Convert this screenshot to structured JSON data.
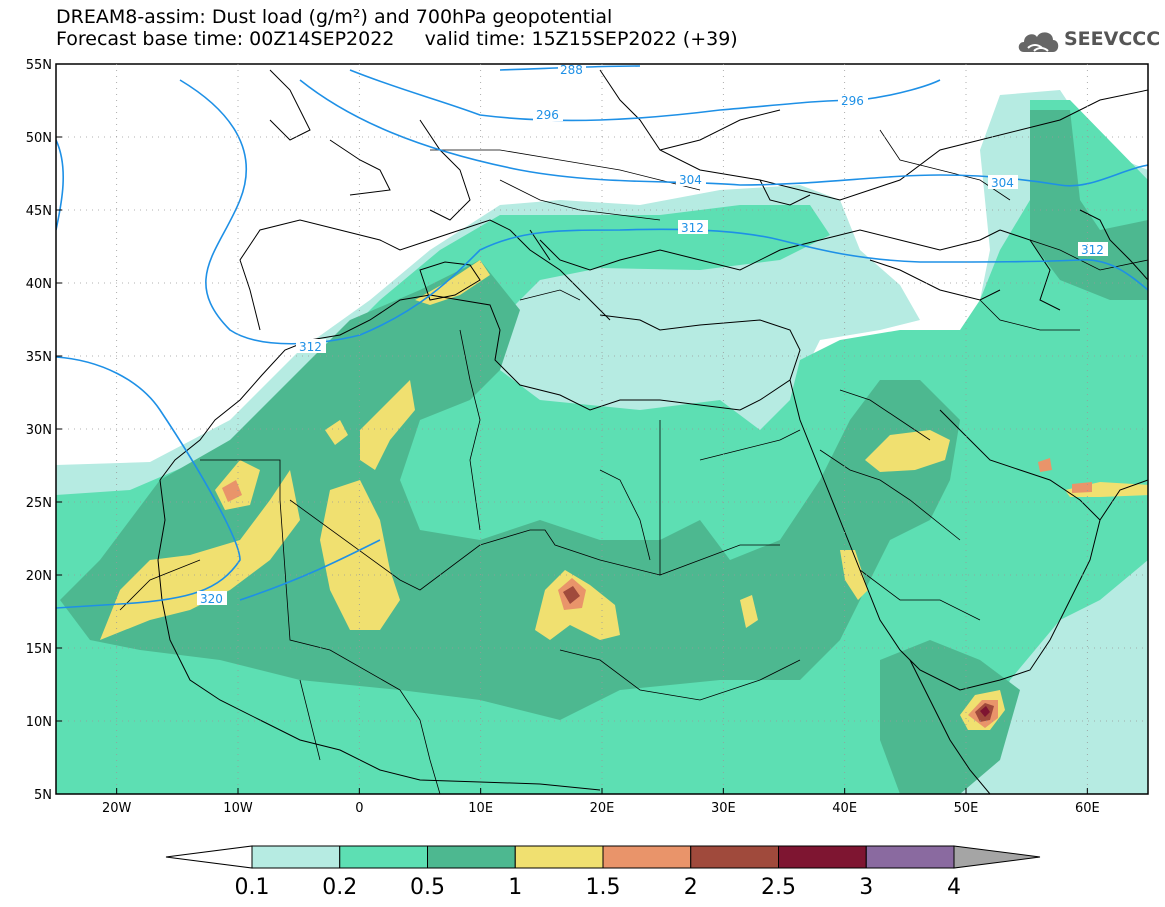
{
  "header": {
    "title_line1": "DREAM8-assim: Dust load (g/m²) and 700hPa geopotential",
    "forecast_base_label": "Forecast base time: 00Z14SEP2022",
    "valid_time_label": "valid time: 15Z15SEP2022 (+39)"
  },
  "logo": {
    "text": "SEEVCCC",
    "icon": "cloud-icon"
  },
  "map": {
    "lon_labels": [
      "20W",
      "10W",
      "0",
      "10E",
      "20E",
      "30E",
      "40E",
      "50E",
      "60E"
    ],
    "lat_labels": [
      "55N",
      "50N",
      "45N",
      "40N",
      "35N",
      "30N",
      "25N",
      "20N",
      "15N",
      "10N",
      "5N"
    ],
    "lon_range": [
      -25,
      65
    ],
    "lat_range": [
      5,
      55
    ],
    "contour_labels": [
      "288",
      "296",
      "296",
      "304",
      "304",
      "312",
      "312",
      "312",
      "320"
    ]
  },
  "colorbar": {
    "labels": [
      "0.1",
      "0.2",
      "0.5",
      "1",
      "1.5",
      "2",
      "2.5",
      "3",
      "4"
    ],
    "colors": [
      "#ffffff",
      "#b6ebe2",
      "#5ddfb3",
      "#4db890",
      "#f0e070",
      "#e9946a",
      "#a04a3c",
      "#7e1531",
      "#8a6aa0",
      "#a5a5a5"
    ]
  },
  "colors": {
    "dust_0_1": "#b6ebe2",
    "dust_0_2": "#5ddfb3",
    "dust_0_5": "#4db890",
    "dust_1": "#f0e070",
    "dust_1_5": "#e9946a",
    "dust_2": "#a04a3c",
    "dust_2_5": "#7e1531",
    "geopotential": "#1e90e6",
    "coast": "#000000"
  }
}
